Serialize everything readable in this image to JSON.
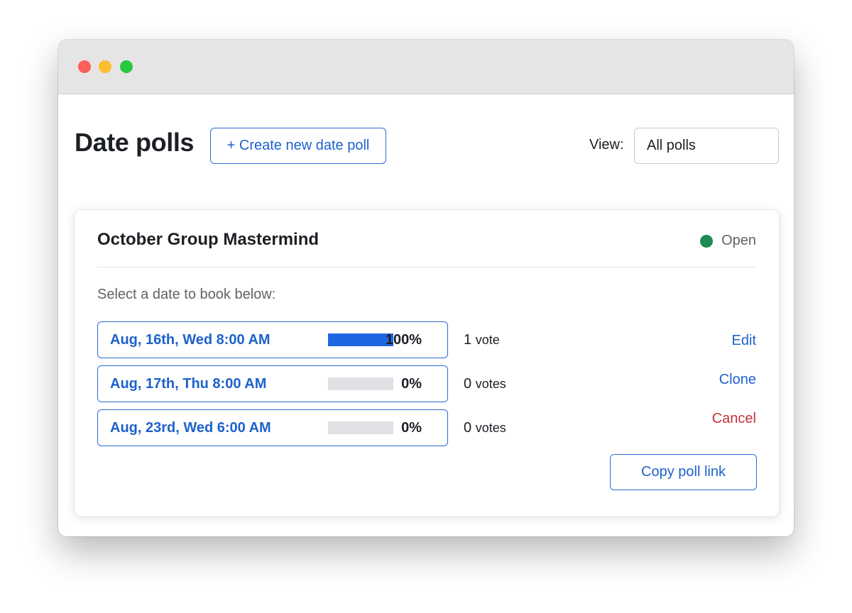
{
  "page": {
    "title": "Date polls",
    "create_button": "+ Create new date poll",
    "view_label": "View:",
    "view_value": "All polls"
  },
  "poll": {
    "title": "October Group Mastermind",
    "status": "Open",
    "status_color": "#1f8a51",
    "instruction": "Select a date to book below:",
    "options": [
      {
        "date": "Aug, 16th, Wed 8:00 AM",
        "percent": 100,
        "percent_label": "100%",
        "vote_count": "1",
        "vote_word": "vote"
      },
      {
        "date": "Aug, 17th, Thu 8:00 AM",
        "percent": 0,
        "percent_label": "0%",
        "vote_count": "0",
        "vote_word": "votes"
      },
      {
        "date": "Aug, 23rd, Wed 6:00 AM",
        "percent": 0,
        "percent_label": "0%",
        "vote_count": "0",
        "vote_word": "votes"
      }
    ],
    "actions": {
      "edit": "Edit",
      "clone": "Clone",
      "cancel": "Cancel"
    },
    "copy_link_button": "Copy poll link"
  },
  "colors": {
    "accent": "#1d62cc",
    "bar_fill": "#1f66e2",
    "bar_track": "#dfe1e5",
    "danger": "#c5303b"
  }
}
